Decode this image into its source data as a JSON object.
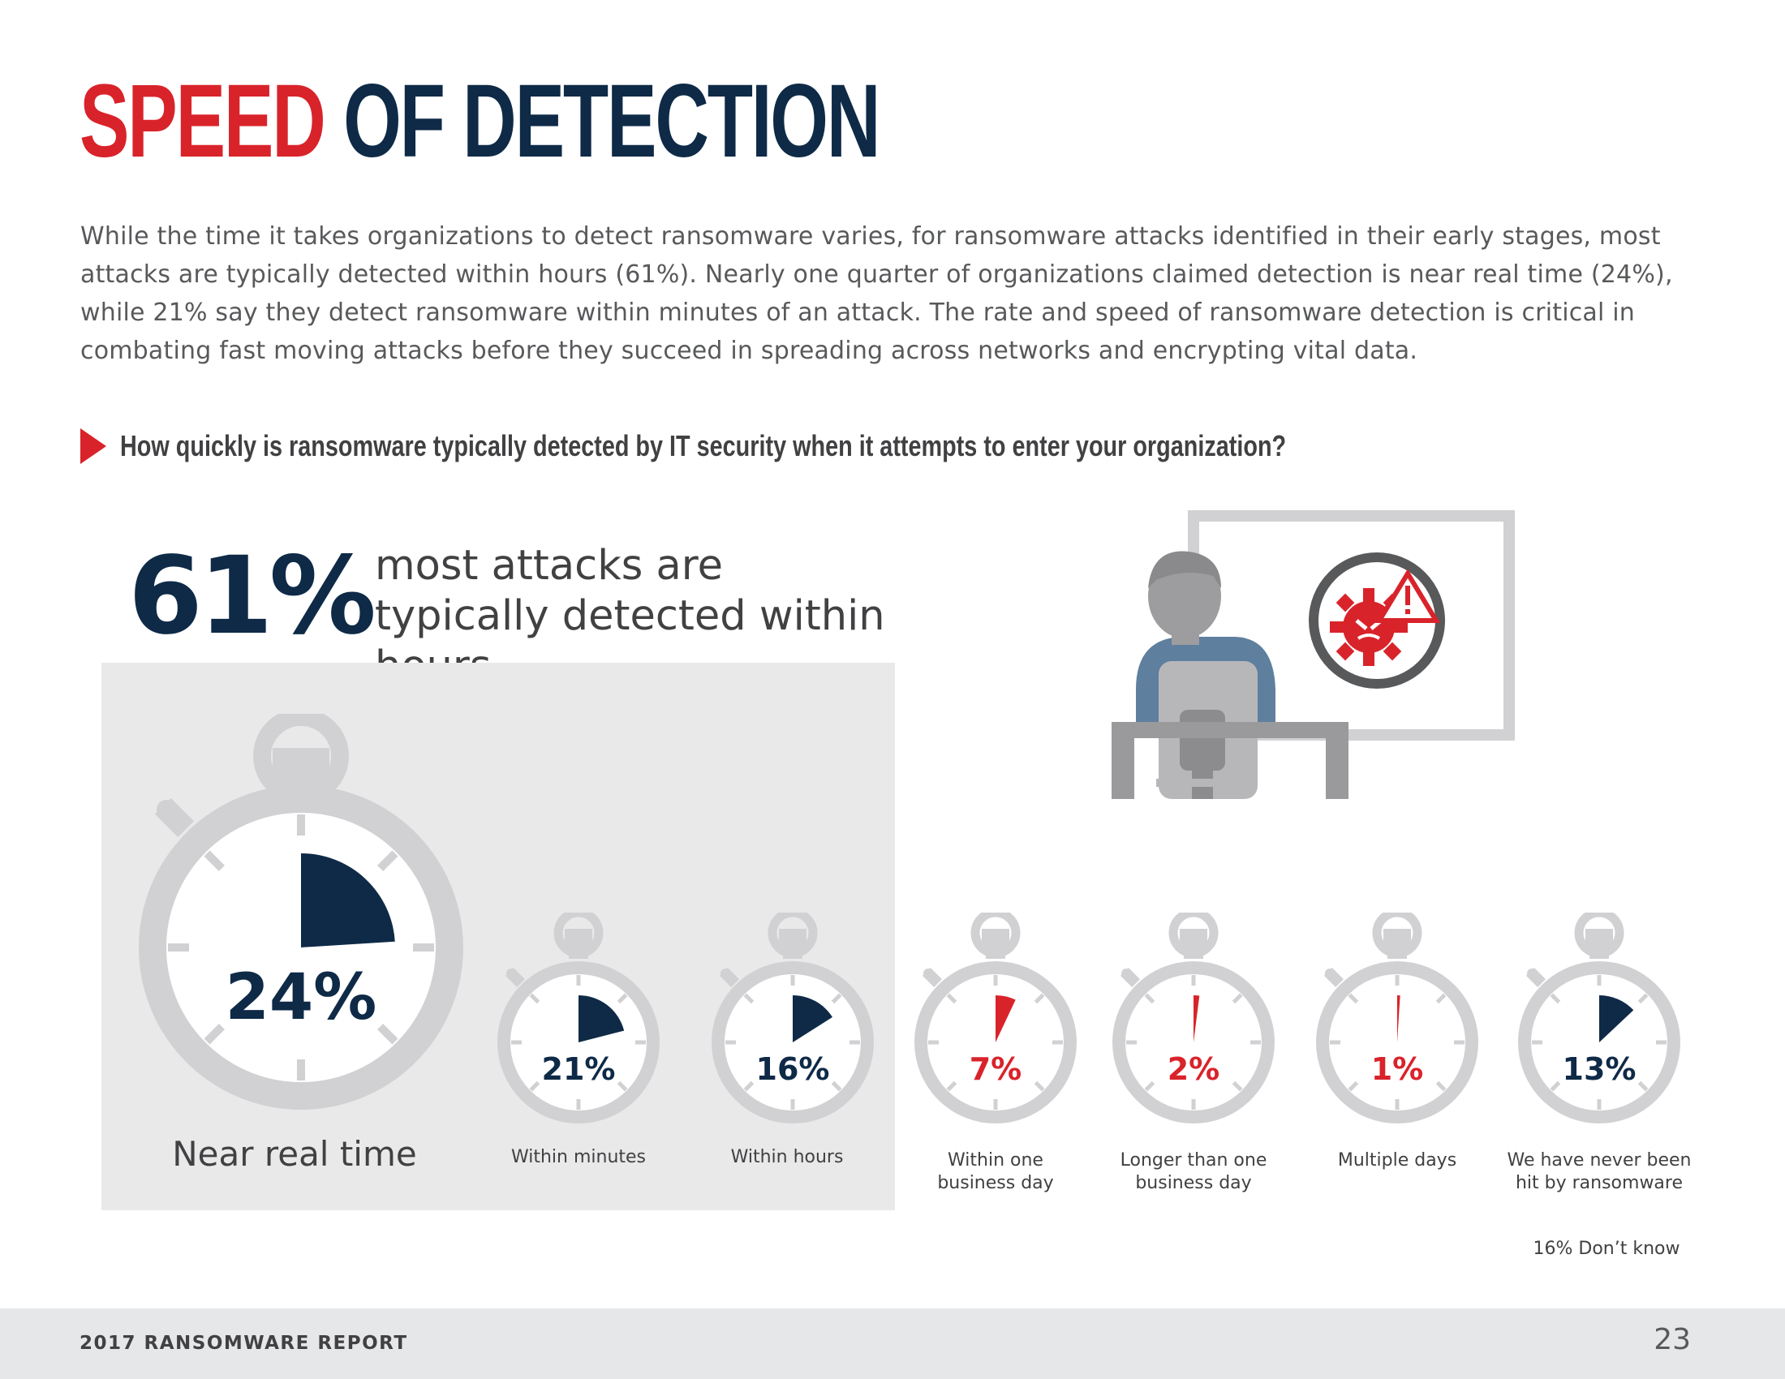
{
  "page": {
    "title_red": "SPEED",
    "title_blue": "OF DETECTION",
    "intro": "While the time it takes organizations to detect ransomware varies, for ransomware attacks identified in their early stages, most attacks are typically detected within hours (61%). Nearly one quarter of organizations claimed detection is near real time (24%), while 21% say they detect ransomware within minutes of an attack. The rate and speed of ransomware detection is critical in combating fast moving attacks before they succeed in spreading across networks and encrypting vital data.",
    "question": "How quickly is ransomware typically detected by IT security when it attempts to enter your organization?",
    "highlight_pct": "61%",
    "highlight_text": "most attacks are typically detected within hours",
    "dont_know": "16% Don’t know",
    "footer_left": "2017 RANSOMWARE REPORT",
    "footer_page": "23"
  },
  "colors": {
    "red": "#d9232a",
    "navy": "#0e2a47",
    "watch_gray": "#d1d1d3",
    "panel_bg": "#e9e9ea"
  },
  "illustration": {
    "icon": "ransomware-alert-icon",
    "description_icon": "person-at-monitor-icon"
  },
  "chart_data": {
    "type": "pie",
    "title": "How quickly is ransomware typically detected by IT security when it attempts to enter your organization?",
    "categories": [
      "Near real time",
      "Within minutes",
      "Within hours",
      "Within one business day",
      "Longer than one business day",
      "Multiple days",
      "We have never been hit by ransomware"
    ],
    "values": [
      24,
      21,
      16,
      7,
      2,
      1,
      13
    ],
    "labels": [
      "24%",
      "21%",
      "16%",
      "7%",
      "2%",
      "1%",
      "13%"
    ],
    "value_colors": [
      "#0e2a47",
      "#0e2a47",
      "#0e2a47",
      "#d9232a",
      "#d9232a",
      "#d9232a",
      "#0e2a47"
    ],
    "note": "16% Don’t know"
  }
}
